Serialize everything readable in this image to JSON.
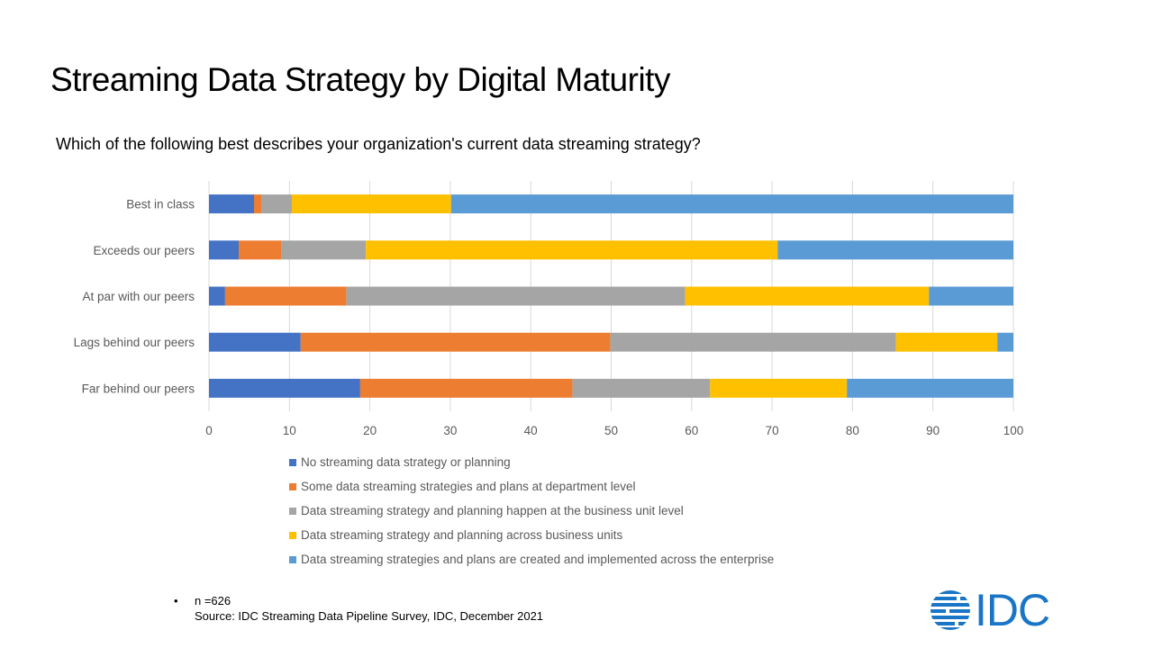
{
  "slide": {
    "title": "Streaming Data Strategy by Digital Maturity",
    "question": "Which of the following best describes your organization's current data streaming strategy?",
    "footnote": {
      "bullet": "•",
      "sample": "n =626",
      "source": "Source: IDC Streaming Data Pipeline Survey, IDC, December 2021"
    },
    "logo": {
      "text": "IDC",
      "icon": "globe-stripes-icon",
      "color": "#1a75c6"
    }
  },
  "chart_data": {
    "type": "bar",
    "orientation": "horizontal",
    "stacked": true,
    "title": "",
    "xlabel": "",
    "ylabel": "",
    "xlim": [
      0,
      100
    ],
    "xticks": [
      0,
      10,
      20,
      30,
      40,
      50,
      60,
      70,
      80,
      90,
      100
    ],
    "grid": "vertical",
    "legend_position": "bottom",
    "categories": [
      "Best in class",
      "Exceeds our peers",
      "At par with our peers",
      "Lags behind our peers",
      "Far behind our peers"
    ],
    "series": [
      {
        "name": "No streaming data strategy or planning",
        "color": "#4472C4",
        "values": [
          5.6,
          3.7,
          2.0,
          11.4,
          18.8
        ]
      },
      {
        "name": "Some data streaming strategies and plans at department level",
        "color": "#ED7D31",
        "values": [
          0.9,
          5.3,
          15.1,
          38.5,
          26.4
        ]
      },
      {
        "name": "Data streaming strategy and planning happen at the business unit level",
        "color": "#A5A5A5",
        "values": [
          3.8,
          10.5,
          42.1,
          35.5,
          17.1
        ]
      },
      {
        "name": "Data streaming strategy and planning across business units",
        "color": "#FFC000",
        "values": [
          19.8,
          51.2,
          30.3,
          12.6,
          17.0
        ]
      },
      {
        "name": "Data streaming strategies and plans are created and implemented across the enterprise",
        "color": "#5B9BD5",
        "values": [
          69.9,
          29.3,
          10.5,
          2.0,
          20.7
        ]
      }
    ]
  }
}
